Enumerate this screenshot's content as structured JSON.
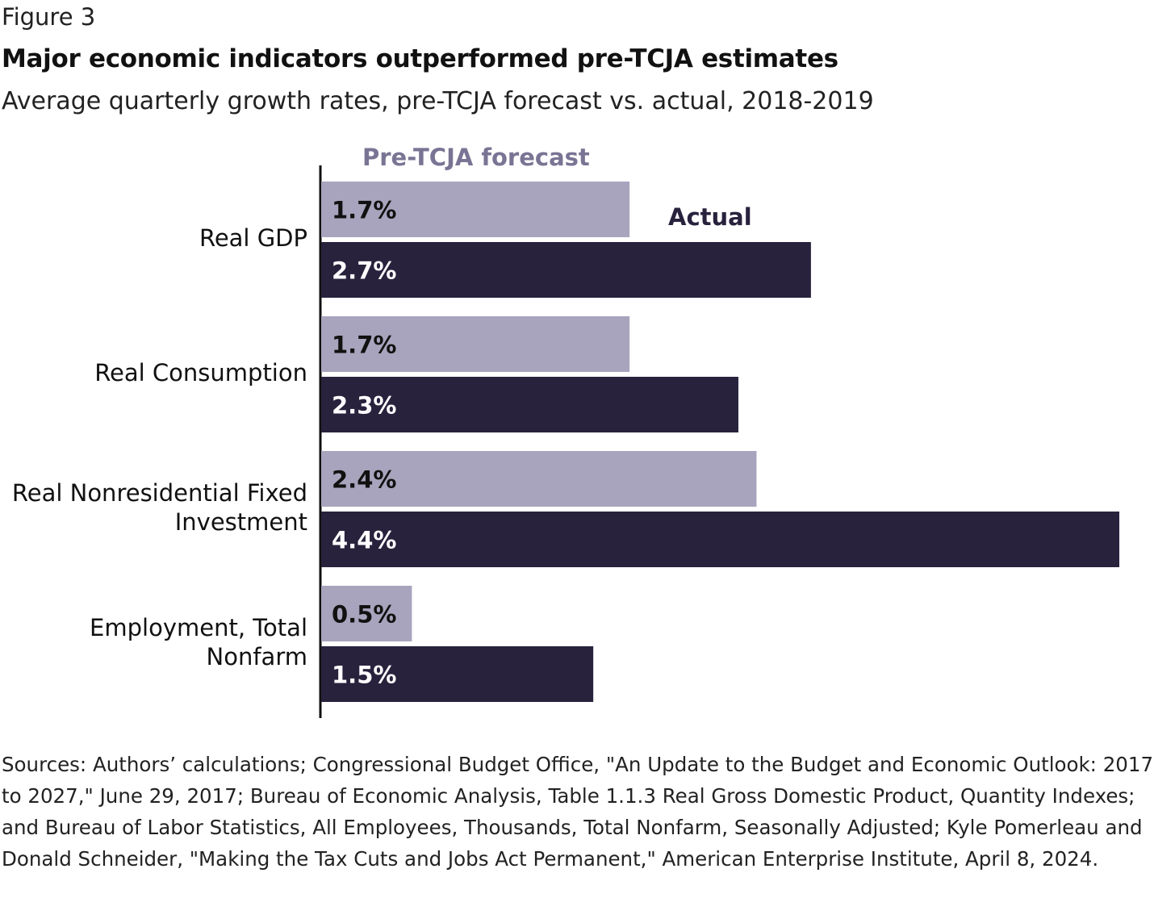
{
  "figure_label": "Figure 3",
  "title": "Major economic indicators outperformed pre-TCJA estimates",
  "subtitle": "Average quarterly growth rates, pre-TCJA forecast vs. actual, 2018-2019",
  "sources": "Sources: Authors’ calculations; Congressional Budget Office, \"An Update to the Budget and Economic Outlook: 2017 to 2027,\" June 29, 2017; Bureau of Economic Analysis, Table 1.1.3 Real Gross Domestic Product, Quantity Indexes; and Bureau of Labor Statistics, All Employees, Thousands, Total Nonfarm, Seasonally Adjusted; Kyle Pomerleau and Donald Schneider, \"Making the Tax Cuts and Jobs Act Permanent,\" American Enterprise Institute, April 8, 2024.",
  "chart_data": {
    "type": "bar",
    "orientation": "horizontal",
    "categories": [
      [
        "Real GDP"
      ],
      [
        "Real Consumption"
      ],
      [
        "Real Nonresidential Fixed",
        "Investment"
      ],
      [
        "Employment, Total",
        "Nonfarm"
      ]
    ],
    "series": [
      {
        "name": "Pre-TCJA forecast",
        "values": [
          1.7,
          1.7,
          2.4,
          0.5
        ],
        "labels": [
          "1.7%",
          "1.7%",
          "2.4%",
          "0.5%"
        ],
        "color": "#a8a4bd",
        "label_color": "#111111"
      },
      {
        "name": "Actual",
        "values": [
          2.7,
          2.3,
          4.4,
          1.5
        ],
        "labels": [
          "2.7%",
          "2.3%",
          "4.4%",
          "1.5%"
        ],
        "color": "#28223d",
        "label_color": "#ffffff"
      }
    ],
    "legend_colors": {
      "Pre-TCJA forecast": "#7a7494",
      "Actual": "#28223d"
    },
    "xlim": [
      0,
      4.4
    ],
    "grid": false,
    "legend": "direct labels above first group",
    "xlabel": "",
    "ylabel": ""
  }
}
